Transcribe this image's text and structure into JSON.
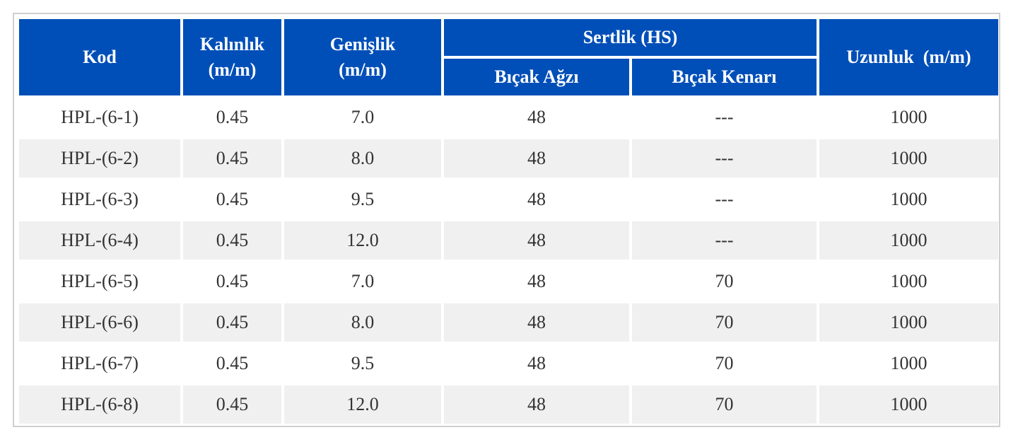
{
  "table": {
    "headers": {
      "kod": "Kod",
      "kalinlik_line1": "Kalınlık",
      "kalinlik_line2": "(m/m)",
      "genislik_line1": "Genişlik",
      "genislik_line2": "(m/m)",
      "sertlik": "Sertlik (HS)",
      "bicak_agzi": "Bıçak Ağzı",
      "bicak_kenari": "Bıçak Kenarı",
      "uzunluk": "Uzunluk  (m/m)"
    },
    "rows": [
      {
        "kod": "HPL-(6-1)",
        "kalinlik": "0.45",
        "genislik": "7.0",
        "bicak_agzi": "48",
        "bicak_kenari": "---",
        "uzunluk": "1000"
      },
      {
        "kod": "HPL-(6-2)",
        "kalinlik": "0.45",
        "genislik": "8.0",
        "bicak_agzi": "48",
        "bicak_kenari": "---",
        "uzunluk": "1000"
      },
      {
        "kod": "HPL-(6-3)",
        "kalinlik": "0.45",
        "genislik": "9.5",
        "bicak_agzi": "48",
        "bicak_kenari": "---",
        "uzunluk": "1000"
      },
      {
        "kod": "HPL-(6-4)",
        "kalinlik": "0.45",
        "genislik": "12.0",
        "bicak_agzi": "48",
        "bicak_kenari": "---",
        "uzunluk": "1000"
      },
      {
        "kod": "HPL-(6-5)",
        "kalinlik": "0.45",
        "genislik": "7.0",
        "bicak_agzi": "48",
        "bicak_kenari": "70",
        "uzunluk": "1000"
      },
      {
        "kod": "HPL-(6-6)",
        "kalinlik": "0.45",
        "genislik": "8.0",
        "bicak_agzi": "48",
        "bicak_kenari": "70",
        "uzunluk": "1000"
      },
      {
        "kod": "HPL-(6-7)",
        "kalinlik": "0.45",
        "genislik": "9.5",
        "bicak_agzi": "48",
        "bicak_kenari": "70",
        "uzunluk": "1000"
      },
      {
        "kod": "HPL-(6-8)",
        "kalinlik": "0.45",
        "genislik": "12.0",
        "bicak_agzi": "48",
        "bicak_kenari": "70",
        "uzunluk": "1000"
      }
    ]
  },
  "colors": {
    "header_bg": "#004fb8",
    "header_text": "#ffffff",
    "row_alt_bg": "#f0f0f0",
    "body_text": "#333333"
  }
}
